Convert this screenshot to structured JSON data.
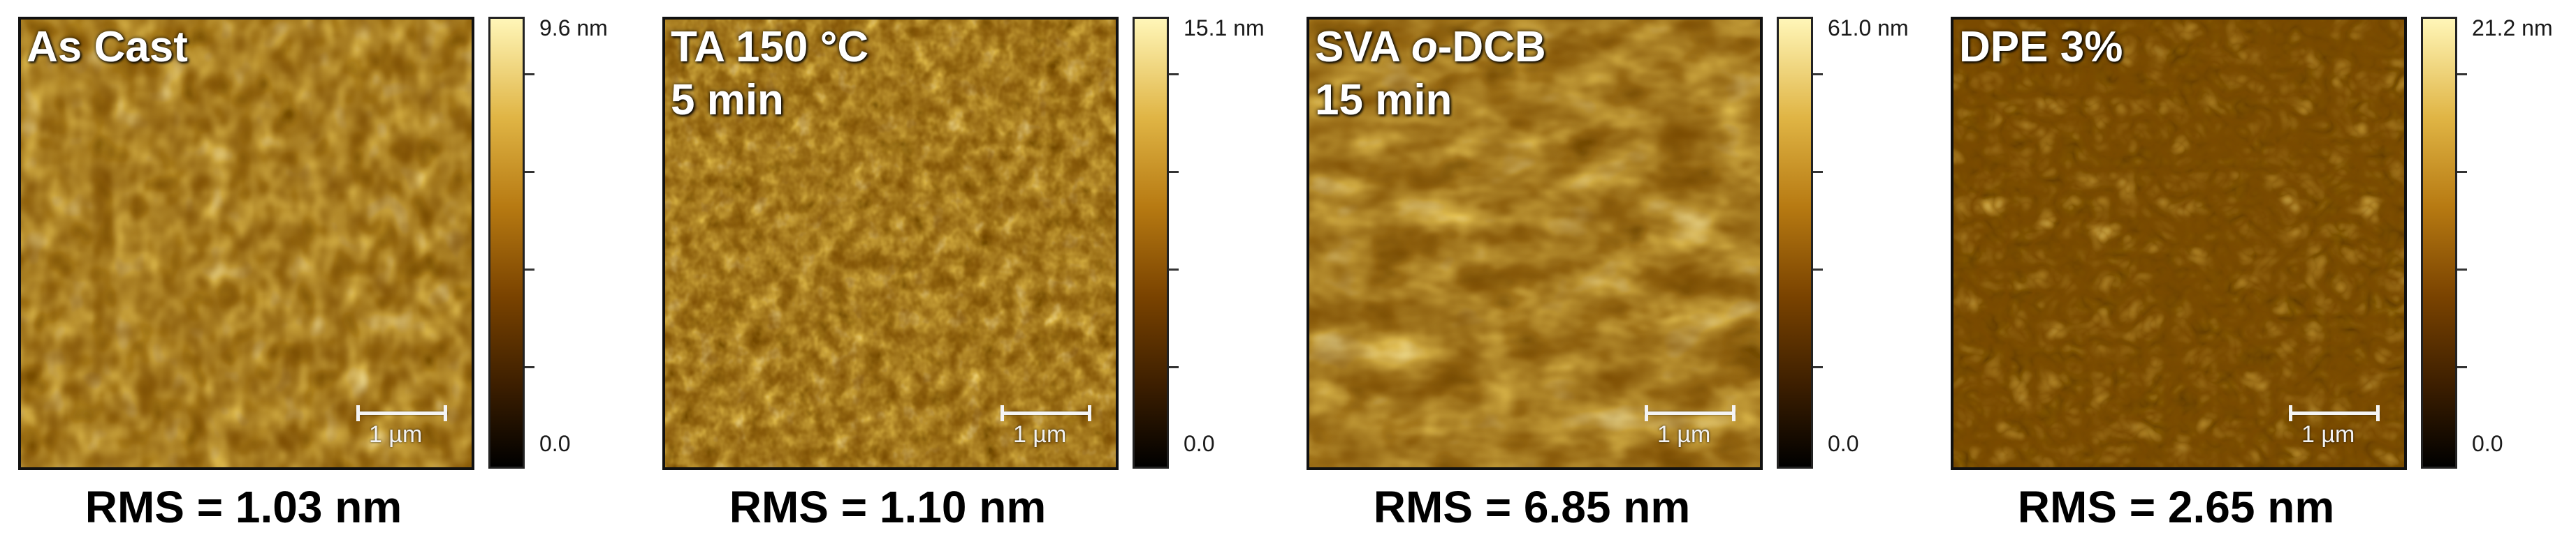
{
  "panels": [
    {
      "id": "as-cast",
      "label_line1": "As Cast",
      "label_line2": "",
      "scale_bar": "1 µm",
      "colorbar_max": "9.6 nm",
      "colorbar_min": "0.0",
      "rms": "RMS = 1.03 nm",
      "texture": "fine-worm-like"
    },
    {
      "id": "ta-150",
      "label_line1": "TA 150 °C",
      "label_line2": "5 min",
      "scale_bar": "1 µm",
      "colorbar_max": "15.1 nm",
      "colorbar_min": "0.0",
      "rms": "RMS = 1.10 nm",
      "texture": "fine-grainy"
    },
    {
      "id": "sva-odcb",
      "label_line1_prefix": "SVA ",
      "label_line1_italic": "o",
      "label_line1_suffix": "-DCB",
      "label_line2": "15 min",
      "scale_bar": "1 µm",
      "colorbar_max": "61.0 nm",
      "colorbar_min": "0.0",
      "rms": "RMS = 6.85 nm",
      "texture": "coarse-fibrous"
    },
    {
      "id": "dpe-3",
      "label_line1": "DPE 3%",
      "label_line2": "",
      "scale_bar": "1 µm",
      "colorbar_max": "21.2 nm",
      "colorbar_min": "0.0",
      "rms": "RMS = 2.65 nm",
      "texture": "rounded-domains"
    }
  ],
  "colors": {
    "afm_dark": "#1a0c00",
    "afm_mid": "#8a5200",
    "afm_light": "#ffe06a",
    "label_text": "#ffffff",
    "rms_text": "#000000"
  }
}
